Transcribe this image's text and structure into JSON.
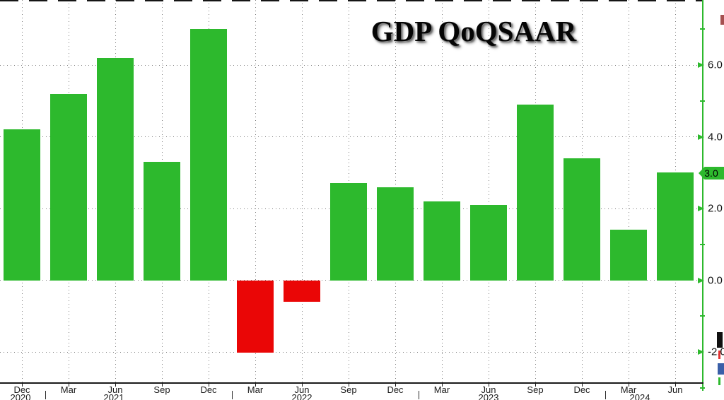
{
  "title": "GDP QoQSAAR",
  "chart_data": {
    "type": "bar",
    "title": "GDP QoQSAAR",
    "categories": [
      "Dec 2020",
      "Mar 2021",
      "Jun 2021",
      "Sep 2021",
      "Dec 2021",
      "Mar 2022",
      "Jun 2022",
      "Sep 2022",
      "Dec 2022",
      "Mar 2023",
      "Jun 2023",
      "Sep 2023",
      "Dec 2023",
      "Mar 2024",
      "Jun 2024"
    ],
    "values": [
      4.2,
      5.2,
      6.2,
      3.3,
      7.0,
      -2.0,
      -0.6,
      2.7,
      2.6,
      2.2,
      2.1,
      4.9,
      3.4,
      1.4,
      3.0
    ],
    "x_tick_labels": [
      "Dec",
      "Mar",
      "Jun",
      "Sep",
      "Dec",
      "Mar",
      "Jun",
      "Sep",
      "Dec",
      "Mar",
      "Jun",
      "Sep",
      "Dec",
      "Mar",
      "Jun"
    ],
    "year_labels": [
      "2020",
      "2021",
      "2022",
      "2023",
      "2024"
    ],
    "y_ticks": [
      6,
      4,
      2,
      0,
      -2
    ],
    "y_tick_labels": [
      "6.0",
      "4.0",
      "2.0",
      "0.0",
      "-2.0"
    ],
    "minor_y_ticks": [
      7,
      5,
      1,
      -1,
      -3
    ],
    "ylim": [
      -2.9,
      7.8
    ],
    "grid": "dotted",
    "legend_position": "none",
    "yaxis_side": "right",
    "last_value_badge": "3.0",
    "colors": {
      "positive_bar": "#2db92d",
      "negative_bar": "#ea0606",
      "axis": "#2db92d",
      "badge_bg": "#2db92d",
      "badge_text": "#000000",
      "grid": "#7d7d7d",
      "text": "#1a1a1a"
    }
  }
}
